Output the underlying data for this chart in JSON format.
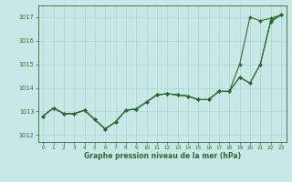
{
  "background_color": "#c8e8e8",
  "grid_color": "#add8d8",
  "line_color": "#2d6a2d",
  "title": "Graphe pression niveau de la mer (hPa)",
  "hours": [
    0,
    1,
    2,
    3,
    4,
    5,
    6,
    7,
    8,
    9,
    10,
    11,
    12,
    13,
    14,
    15,
    16,
    17,
    18,
    19,
    20,
    21,
    22,
    23
  ],
  "ylim": [
    1011.7,
    1017.5
  ],
  "yticks": [
    1012,
    1013,
    1014,
    1015,
    1016,
    1017
  ],
  "series1": [
    1012.8,
    1013.15,
    1012.9,
    1012.9,
    1013.05,
    1012.65,
    1012.25,
    1012.55,
    1013.05,
    1013.1,
    1013.4,
    1013.7,
    1013.75,
    1013.7,
    1013.65,
    1013.5,
    1013.5,
    1013.85,
    1013.85,
    1015.0,
    1017.0,
    1016.85,
    1016.95,
    1017.1
  ],
  "series2": [
    1012.8,
    1013.15,
    1012.9,
    1012.9,
    1013.05,
    1012.65,
    1012.25,
    1012.55,
    1013.05,
    1013.1,
    1013.4,
    1013.7,
    1013.75,
    1013.7,
    1013.65,
    1013.5,
    1013.5,
    1013.85,
    1013.85,
    1014.45,
    1014.2,
    1015.0,
    1016.85,
    1017.1
  ],
  "series3": [
    1012.8,
    1013.15,
    1012.9,
    1012.9,
    1013.05,
    1012.65,
    1012.25,
    1012.55,
    1013.05,
    1013.1,
    1013.4,
    1013.7,
    1013.75,
    1013.7,
    1013.65,
    1013.5,
    1013.5,
    1013.85,
    1013.85,
    1014.45,
    1014.2,
    1015.0,
    1016.8,
    1017.1
  ],
  "fig_width": 3.2,
  "fig_height": 2.0,
  "dpi": 100
}
